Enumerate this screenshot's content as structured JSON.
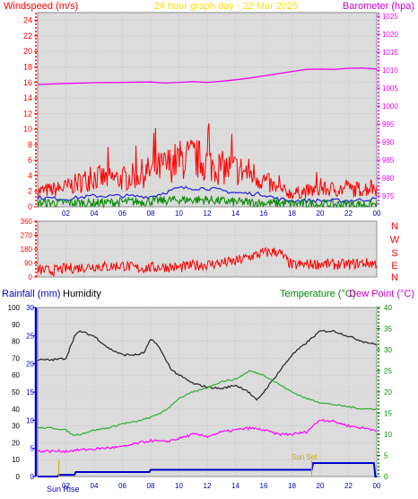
{
  "header": {
    "left": "Windspeed (m/s)",
    "center": "24 hour graph day - 22 Mar 2025",
    "right": "Barometer (hpa)"
  },
  "compass": [
    "N",
    "W",
    "S",
    "E",
    "N"
  ],
  "bottom_titles": {
    "rainfall": "Rainfall (mm)",
    "humidity": "Humidity",
    "temperature": "Temperature (°C)",
    "dewpoint": "Dew Point (°C)"
  },
  "markers": {
    "sunrise": "Sun Rise",
    "sunset": "Sun Set"
  },
  "colors": {
    "wind_gust": "#ff0000",
    "wind_avg": "#2222dd",
    "wind_low": "#008800",
    "barometer": "#ee00ee",
    "direction": "#ff0000",
    "humidity": "#222222",
    "temperature": "#33aa33",
    "dewpoint": "#ff00ff",
    "rainfall": "#0000cc",
    "wind_axis": "#ff0000",
    "baro_axis": "#ee00ee",
    "temp_axis": "#008800",
    "rain_axis": "#0000cc",
    "hum_axis": "#000000"
  },
  "chart_data": [
    {
      "type": "line",
      "x_ticks": [
        "02",
        "04",
        "06",
        "08",
        "10",
        "12",
        "14",
        "16",
        "18",
        "20",
        "22",
        "00"
      ],
      "xlim": [
        0,
        24
      ],
      "y_left": {
        "label": "Windspeed (m/s)",
        "ylim": [
          0,
          25
        ],
        "ticks": [
          0,
          2,
          4,
          6,
          8,
          10,
          12,
          14,
          16,
          18,
          20,
          22,
          24
        ]
      },
      "y_right": {
        "label": "Barometer (hpa)",
        "ylim": [
          972,
          1026
        ],
        "ticks": [
          975,
          980,
          985,
          990,
          995,
          1000,
          1005,
          1010,
          1015,
          1020,
          1025
        ]
      },
      "series": [
        {
          "axis": "right",
          "x": [
            0,
            2,
            4,
            6,
            8,
            9,
            10,
            11,
            12,
            13,
            14,
            15,
            16,
            17,
            18,
            19,
            20,
            21,
            22,
            23,
            24
          ],
          "values": [
            1006,
            1006.3,
            1006.5,
            1006.6,
            1006.7,
            1006.4,
            1006.6,
            1006.8,
            1006.6,
            1006.9,
            1007.3,
            1007.8,
            1008.4,
            1009.0,
            1009.6,
            1010.2,
            1010.3,
            1010.2,
            1010.5,
            1010.6,
            1010.3
          ]
        },
        {
          "axis": "left",
          "x": [
            0,
            1,
            2,
            3,
            4,
            5,
            6,
            7,
            8,
            9,
            10,
            11,
            12,
            13,
            14,
            15,
            16,
            17,
            18,
            19,
            20,
            21,
            22,
            23,
            24
          ],
          "values": [
            2.0,
            2.2,
            2.5,
            3.2,
            3.8,
            3.6,
            3.6,
            4.0,
            4.6,
            5.2,
            6.0,
            6.3,
            5.6,
            5.0,
            4.8,
            4.4,
            3.4,
            2.2,
            1.7,
            2.0,
            2.2,
            2.3,
            2.2,
            2.3,
            2.5
          ]
        },
        {
          "axis": "left",
          "x": [
            0,
            2,
            4,
            6,
            8,
            10,
            12,
            14,
            16,
            17,
            18,
            20,
            22,
            24
          ],
          "values": [
            1.2,
            1.0,
            1.4,
            1.4,
            1.3,
            2.4,
            2.4,
            1.8,
            1.6,
            1.0,
            0.8,
            0.8,
            0.8,
            1.0
          ]
        },
        {
          "axis": "left",
          "x": [
            0,
            2,
            4,
            6,
            8,
            10,
            12,
            14,
            16,
            18,
            20,
            22,
            24
          ],
          "values": [
            0.5,
            0.5,
            0.5,
            0.6,
            0.7,
            0.9,
            0.9,
            0.6,
            0.5,
            0.4,
            0.3,
            0.3,
            0.3
          ]
        }
      ]
    },
    {
      "type": "line",
      "y_ticks": [
        0,
        90,
        180,
        270,
        360
      ],
      "ylim": [
        0,
        360
      ],
      "xlim": [
        0,
        24
      ],
      "series": [
        {
          "x": [
            0,
            1,
            2,
            3,
            4,
            5,
            6,
            7,
            8,
            9,
            10,
            11,
            12,
            13,
            14,
            15,
            16,
            17,
            18,
            19,
            20,
            21,
            22,
            23,
            24
          ],
          "values": [
            45,
            40,
            55,
            60,
            70,
            65,
            75,
            55,
            60,
            65,
            60,
            75,
            80,
            90,
            100,
            130,
            155,
            165,
            75,
            80,
            85,
            80,
            80,
            90,
            85
          ]
        }
      ]
    },
    {
      "type": "line",
      "x_ticks": [
        "02",
        "04",
        "06",
        "08",
        "10",
        "12",
        "14",
        "16",
        "18",
        "20",
        "22",
        "00"
      ],
      "xlim": [
        0,
        24
      ],
      "y_humidity": {
        "label": "Humidity",
        "ylim": [
          0,
          100
        ],
        "ticks": [
          0,
          10,
          20,
          30,
          40,
          50,
          60,
          70,
          80,
          90,
          100
        ]
      },
      "y_rainfall": {
        "label": "Rainfall (mm)",
        "ylim": [
          0,
          30
        ],
        "ticks": [
          0,
          5,
          10,
          15,
          20,
          25,
          30
        ]
      },
      "y_temperature": {
        "label": "Temperature (°C)",
        "ylim": [
          0,
          40
        ],
        "ticks": [
          0,
          5,
          10,
          15,
          20,
          25,
          30,
          35,
          40
        ]
      },
      "series": [
        {
          "axis": "humidity",
          "x": [
            0,
            1,
            2,
            2.6,
            3,
            4,
            5,
            6,
            7,
            7.5,
            8,
            8.5,
            9,
            9.5,
            10,
            11,
            12,
            13,
            14,
            14.8,
            15.5,
            16,
            17,
            18,
            19,
            20,
            21,
            22,
            23,
            24
          ],
          "values": [
            69,
            69,
            70,
            83,
            86,
            83,
            76,
            72,
            72,
            73,
            81,
            78,
            70,
            63,
            60,
            55,
            53,
            52,
            54,
            51,
            45,
            50,
            61,
            72,
            79,
            86,
            86,
            83,
            80,
            78
          ]
        },
        {
          "axis": "temperature",
          "x": [
            0,
            1,
            2,
            2.5,
            3,
            4,
            5,
            6,
            7,
            8,
            9,
            10,
            11,
            12,
            13,
            14,
            14.5,
            15,
            16,
            17,
            18,
            19,
            20,
            21,
            22,
            23,
            24
          ],
          "values": [
            11.5,
            11.5,
            11,
            9.8,
            10,
            11,
            11.5,
            12.5,
            13,
            14,
            15.5,
            18.5,
            20,
            21,
            22.5,
            23,
            24,
            25,
            24,
            22,
            20,
            18.5,
            17.5,
            17,
            16.5,
            16,
            16
          ]
        },
        {
          "axis": "temperature",
          "x": [
            0,
            1,
            2,
            3,
            4,
            5,
            6,
            7,
            8,
            9,
            10,
            11,
            12,
            13,
            14,
            15,
            16,
            17,
            18,
            19,
            20,
            21,
            22,
            23,
            24
          ],
          "values": [
            6,
            6,
            6,
            6.3,
            6.5,
            6.8,
            7,
            7.8,
            8.5,
            8.2,
            9,
            10,
            9.5,
            10.5,
            11,
            11.5,
            11,
            10,
            10,
            10.5,
            13.5,
            13,
            12,
            11.5,
            11
          ]
        },
        {
          "axis": "rainfall",
          "x": [
            0,
            1.4,
            1.5,
            2.6,
            2.7,
            7.9,
            8,
            19.4,
            19.5,
            23.8,
            23.9,
            24
          ],
          "values": [
            0,
            0,
            0.3,
            0.3,
            0.8,
            0.8,
            1.2,
            1.2,
            2.4,
            2.4,
            0,
            0
          ]
        }
      ]
    }
  ]
}
